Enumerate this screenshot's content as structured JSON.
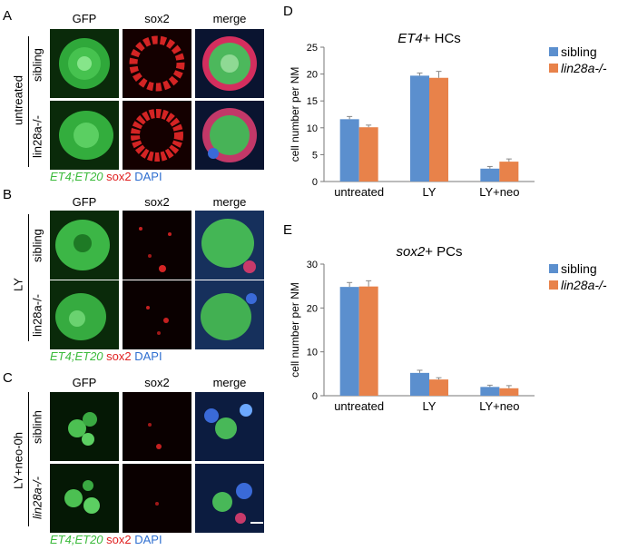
{
  "panels": {
    "A": {
      "letter": "A",
      "columns": [
        "GFP",
        "sox2",
        "merge"
      ],
      "group_label": "untreated",
      "rows": [
        "sibling",
        "lin28a-/-"
      ],
      "legend": {
        "green": "ET4;ET20",
        "red": "sox2",
        "blue": "DAPI"
      }
    },
    "B": {
      "letter": "B",
      "columns": [
        "GFP",
        "sox2",
        "merge"
      ],
      "group_label": "LY",
      "rows": [
        "sibling",
        "lin28a-/-"
      ],
      "legend": {
        "green": "ET4;ET20",
        "red": "sox2",
        "blue": "DAPI"
      }
    },
    "C": {
      "letter": "C",
      "columns": [
        "GFP",
        "sox2",
        "merge"
      ],
      "group_label": "LY+neo-0h",
      "rows": [
        "siblinh",
        "lin28a-/-"
      ],
      "legend": {
        "green": "ET4;ET20",
        "red": "sox2",
        "blue": "DAPI"
      }
    }
  },
  "colors": {
    "blue": "#5b8fce",
    "orange": "#e8824a",
    "green": "#3dbb3d",
    "red": "#e02020",
    "dapi": "#2f6fd0"
  },
  "chart_data": [
    {
      "letter": "D",
      "type": "bar",
      "title_italic": "ET4",
      "title_rest": "+ HCs",
      "ylabel": "cell number per NM",
      "categories": [
        "untreated",
        "LY",
        "LY+neo"
      ],
      "ylim": [
        0,
        25
      ],
      "yticks": [
        0,
        5,
        10,
        15,
        20,
        25
      ],
      "series": [
        {
          "name": "sibling",
          "values": [
            11.6,
            19.7,
            2.4
          ],
          "errors": [
            0.5,
            0.5,
            0.4
          ]
        },
        {
          "name": "lin28a-/-",
          "values": [
            10.1,
            19.3,
            3.7
          ],
          "errors": [
            0.4,
            1.2,
            0.5
          ]
        }
      ]
    },
    {
      "letter": "E",
      "type": "bar",
      "title_italic": "sox2",
      "title_rest": "+ PCs",
      "ylabel": "cell number per NM",
      "categories": [
        "untreated",
        "LY",
        "LY+neo"
      ],
      "ylim": [
        0,
        30
      ],
      "yticks": [
        0,
        10,
        20,
        30
      ],
      "series": [
        {
          "name": "sibling",
          "values": [
            24.8,
            5.2,
            2.0
          ],
          "errors": [
            1.0,
            0.6,
            0.4
          ]
        },
        {
          "name": "lin28a-/-",
          "values": [
            24.9,
            3.7,
            1.7
          ],
          "errors": [
            1.3,
            0.4,
            0.6
          ]
        }
      ]
    }
  ]
}
